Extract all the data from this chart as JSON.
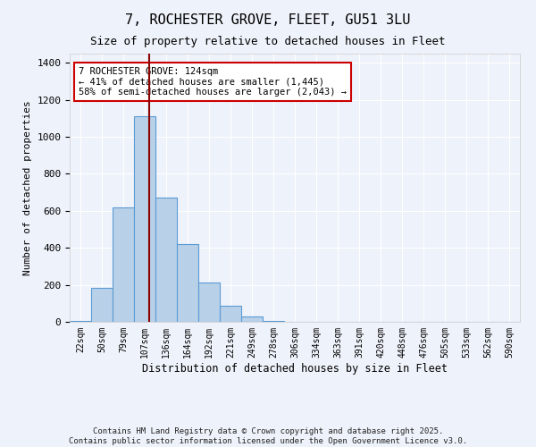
{
  "title_line1": "7, ROCHESTER GROVE, FLEET, GU51 3LU",
  "title_line2": "Size of property relative to detached houses in Fleet",
  "xlabel": "Distribution of detached houses by size in Fleet",
  "ylabel": "Number of detached properties",
  "categories": [
    "22sqm",
    "50sqm",
    "79sqm",
    "107sqm",
    "136sqm",
    "164sqm",
    "192sqm",
    "221sqm",
    "249sqm",
    "278sqm",
    "306sqm",
    "334sqm",
    "363sqm",
    "391sqm",
    "420sqm",
    "448sqm",
    "476sqm",
    "505sqm",
    "533sqm",
    "562sqm",
    "590sqm"
  ],
  "values": [
    3,
    185,
    620,
    1110,
    670,
    420,
    215,
    85,
    30,
    5,
    0,
    0,
    0,
    0,
    0,
    0,
    0,
    0,
    0,
    0,
    0
  ],
  "bar_color": "#b8d0e8",
  "bar_edgecolor": "#5b9bd5",
  "bar_linewidth": 0.8,
  "vline_color": "#8b0000",
  "vline_x": 3.2,
  "annotation_text": "7 ROCHESTER GROVE: 124sqm\n← 41% of detached houses are smaller (1,445)\n58% of semi-detached houses are larger (2,043) →",
  "annotation_box_edgecolor": "#cc0000",
  "annotation_box_facecolor": "#ffffff",
  "ylim": [
    0,
    1450
  ],
  "background_color": "#eef2fa",
  "grid_color": "#ffffff",
  "yticks": [
    0,
    200,
    400,
    600,
    800,
    1000,
    1200,
    1400
  ],
  "footer_line1": "Contains HM Land Registry data © Crown copyright and database right 2025.",
  "footer_line2": "Contains public sector information licensed under the Open Government Licence v3.0."
}
